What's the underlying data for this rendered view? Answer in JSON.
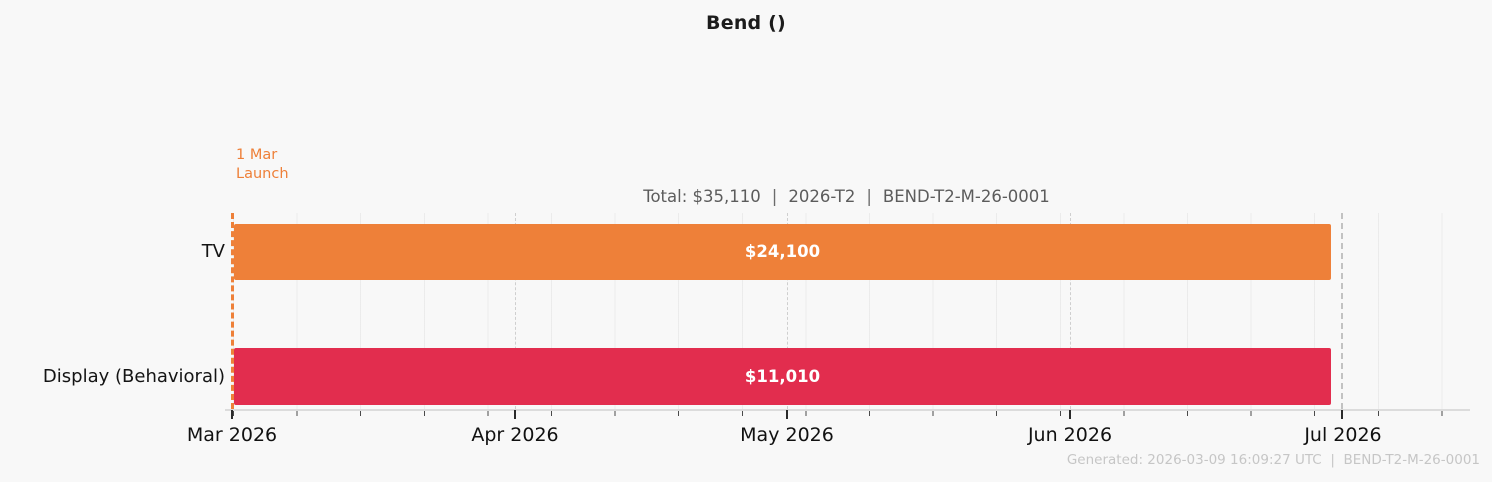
{
  "title": "Bend ()",
  "annotation": {
    "line1": "1 Mar",
    "line2": "Launch"
  },
  "summary": {
    "parts": [
      "Total: $35,110",
      "2026-T2",
      "BEND-T2-M-26-0001"
    ],
    "separator": "|"
  },
  "footer": "Generated: 2026-03-09 16:09:27 UTC  |  BEND-T2-M-26-0001",
  "colors": {
    "tv_bar": "#ee8039",
    "display_bar": "#e22d4e",
    "launch_line": "#ee8039",
    "month_gridline": "#cfcfcf",
    "background": "#f8f8f8",
    "bar_value_text": "#ffffff",
    "summary_text": "#5c5c5c",
    "footer_text": "#c6c6c6"
  },
  "chart_data": {
    "type": "bar",
    "subtype": "horizontal-gantt-timeline",
    "title": "Bend ()",
    "categories": [
      "TV",
      "Display (Behavioral)"
    ],
    "series": [
      {
        "name": "TV",
        "value": 24100,
        "value_label": "$24,100",
        "start": "2026-03-01",
        "end": "2026-06-30",
        "color": "#ee8039"
      },
      {
        "name": "Display (Behavioral)",
        "value": 11010,
        "value_label": "$11,010",
        "start": "2026-03-01",
        "end": "2026-06-30",
        "color": "#e22d4e"
      }
    ],
    "total": 35110,
    "total_label": "Total: $35,110",
    "campaign_term": "2026-T2",
    "campaign_code": "BEND-T2-M-26-0001",
    "x_axis": {
      "ticks": [
        "Mar 2026",
        "Apr 2026",
        "May 2026",
        "Jun 2026",
        "Jul 2026"
      ],
      "range_start": "2026-03-01",
      "range_end": "2026-07-15",
      "minor_ticks": "weekly",
      "grid": "monthly dashed lines, weekly faint lines"
    },
    "launch_marker": {
      "date": "2026-03-01",
      "label": "1 Mar Launch"
    },
    "legend_position": "none"
  }
}
